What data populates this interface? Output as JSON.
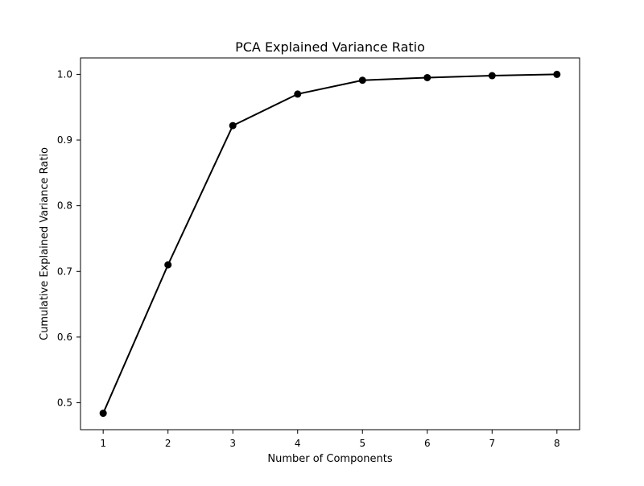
{
  "chart_data": {
    "type": "line",
    "title": "PCA Explained Variance Ratio",
    "xlabel": "Number of Components",
    "ylabel": "Cumulative Explained Variance Ratio",
    "x": [
      1,
      2,
      3,
      4,
      5,
      6,
      7,
      8
    ],
    "series": [
      {
        "values": [
          0.484,
          0.71,
          0.922,
          0.97,
          0.991,
          0.995,
          0.998,
          1.0
        ],
        "color": "#000000",
        "marker": "circle"
      }
    ],
    "xlim": [
      0.65,
      8.35
    ],
    "ylim": [
      0.459,
      1.025
    ],
    "xticks": [
      1,
      2,
      3,
      4,
      5,
      6,
      7,
      8
    ],
    "xtick_labels": [
      "1",
      "2",
      "3",
      "4",
      "5",
      "6",
      "7",
      "8"
    ],
    "yticks": [
      0.5,
      0.6,
      0.7,
      0.8,
      0.9,
      1.0
    ],
    "ytick_labels": [
      "0.5",
      "0.6",
      "0.7",
      "0.8",
      "0.9",
      "1.0"
    ],
    "grid": false,
    "legend": "none"
  }
}
